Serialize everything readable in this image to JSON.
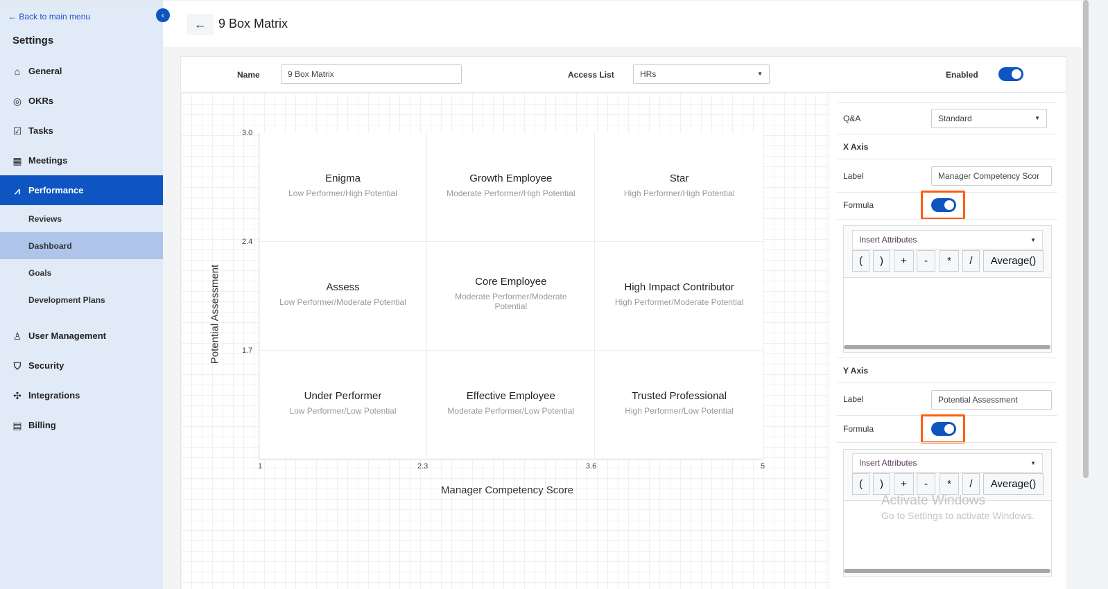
{
  "sidebar": {
    "back": "← Back to main menu",
    "title": "Settings",
    "items": [
      {
        "label": "General",
        "icon": "home-icon"
      },
      {
        "label": "OKRs",
        "icon": "target-icon"
      },
      {
        "label": "Tasks",
        "icon": "calendar-check-icon"
      },
      {
        "label": "Meetings",
        "icon": "calendar-icon"
      },
      {
        "label": "Performance",
        "icon": "chart-line-icon"
      }
    ],
    "sub_items": [
      "Reviews",
      "Dashboard",
      "Goals",
      "Development Plans"
    ],
    "items2": [
      {
        "label": "User Management",
        "icon": "user-icon"
      },
      {
        "label": "Security",
        "icon": "shield-icon"
      },
      {
        "label": "Integrations",
        "icon": "puzzle-icon"
      },
      {
        "label": "Billing",
        "icon": "document-icon"
      }
    ]
  },
  "header": {
    "title": "9 Box Matrix"
  },
  "form": {
    "name_label": "Name",
    "name_value": "9 Box Matrix",
    "access_label": "Access List",
    "access_value": "HRs",
    "enabled_label": "Enabled",
    "enabled": true
  },
  "matrix": {
    "y_axis_label": "Potential Assessment",
    "x_axis_label": "Manager Competency Score",
    "y_ticks": [
      "3.0",
      "2.4",
      "1.7"
    ],
    "x_ticks": [
      "1",
      "2.3",
      "3.6",
      "5"
    ],
    "cells": [
      {
        "title": "Enigma",
        "subtitle": "Low Performer/High Potential"
      },
      {
        "title": "Growth Employee",
        "subtitle": "Moderate Performer/High Potential"
      },
      {
        "title": "Star",
        "subtitle": "High Performer/High Potential"
      },
      {
        "title": "Assess",
        "subtitle": "Low Performer/Moderate Potential"
      },
      {
        "title": "Core Employee",
        "subtitle": "Moderate Performer/Moderate Potential"
      },
      {
        "title": "High Impact Contributor",
        "subtitle": "High Performer/Moderate Potential"
      },
      {
        "title": "Under Performer",
        "subtitle": "Low Performer/Low Potential"
      },
      {
        "title": "Effective Employee",
        "subtitle": "Moderate Performer/Low Potential"
      },
      {
        "title": "Trusted Professional",
        "subtitle": "High Performer/Low Potential"
      }
    ]
  },
  "panel": {
    "qa_label": "Q&A",
    "qa_value": "Standard",
    "x_axis": {
      "heading": "X Axis",
      "label_label": "Label",
      "label_value": "Manager Competency Scor",
      "formula_label": "Formula",
      "formula_on": true,
      "insert": "Insert Attributes"
    },
    "y_axis": {
      "heading": "Y Axis",
      "label_label": "Label",
      "label_value": "Potential Assessment",
      "formula_label": "Formula",
      "formula_on": true,
      "insert": "Insert Attributes"
    },
    "operators": [
      "(",
      ")",
      "+",
      "-",
      "*",
      "/",
      "Average()"
    ]
  },
  "watermark": {
    "line1": "Activate Windows",
    "line2": "Go to Settings to activate Windows."
  },
  "colors": {
    "accent": "#0f55c2",
    "highlight": "#ff5e0e",
    "sidebar_bg": "#e1eaf7"
  }
}
